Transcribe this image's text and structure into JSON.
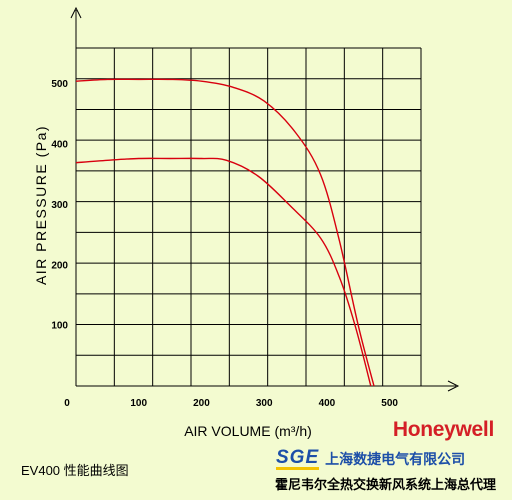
{
  "chart_data": {
    "type": "line",
    "xlabel": "AIR  VOLUME (m³/h)",
    "ylabel": "AIR  PRESSURE (Pa)",
    "xlim": [
      0,
      550
    ],
    "ylim": [
      0,
      560
    ],
    "x_ticks": [
      "0",
      "100",
      "200",
      "300",
      "400",
      "500"
    ],
    "y_ticks": [
      "100",
      "200",
      "300",
      "400",
      "500"
    ],
    "grid": true,
    "series": [
      {
        "color": "#d8000f",
        "points": [
          [
            0,
            505
          ],
          [
            50,
            508
          ],
          [
            100,
            508
          ],
          [
            150,
            508
          ],
          [
            200,
            505
          ],
          [
            250,
            495
          ],
          [
            300,
            472
          ],
          [
            350,
            420
          ],
          [
            390,
            350
          ],
          [
            420,
            240
          ],
          [
            450,
            100
          ],
          [
            475,
            0
          ]
        ]
      },
      {
        "color": "#d8000f",
        "points": [
          [
            0,
            370
          ],
          [
            50,
            374
          ],
          [
            100,
            377
          ],
          [
            150,
            377
          ],
          [
            200,
            377
          ],
          [
            240,
            374
          ],
          [
            290,
            348
          ],
          [
            340,
            300
          ],
          [
            390,
            245
          ],
          [
            420,
            180
          ],
          [
            445,
            100
          ],
          [
            470,
            0
          ]
        ]
      }
    ]
  },
  "caption": "EV400 性能曲线图",
  "brand": "Honeywell",
  "company": {
    "logo": "SGE",
    "name": "上海数捷电气有限公司"
  },
  "tagline": "霍尼韦尔全热交换新风系统上海总代理"
}
